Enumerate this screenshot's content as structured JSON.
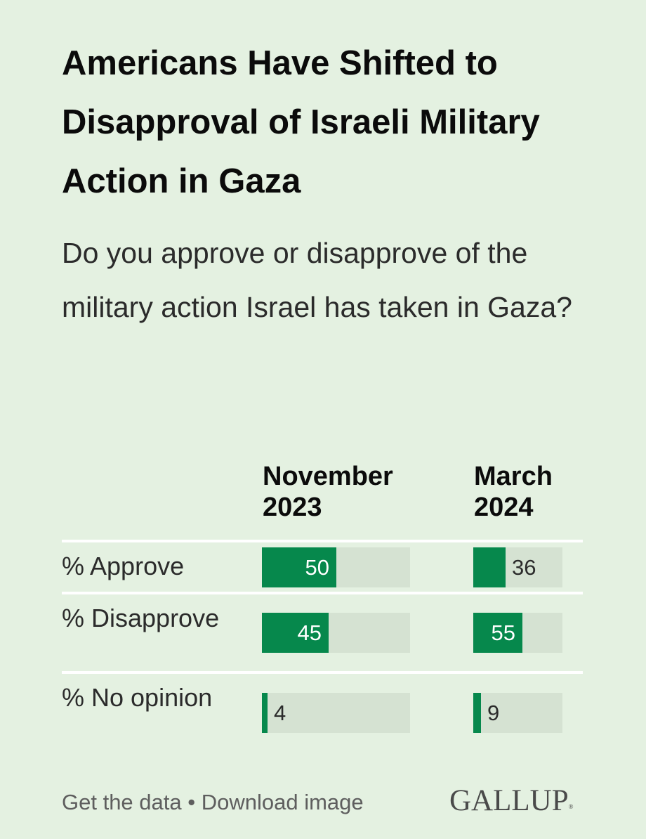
{
  "title": "Americans Have Shifted to Disapproval of Israeli Military Action in Gaza",
  "subtitle": "Do you approve or disapprove of the military action Israel has taken in Gaza?",
  "chart_data": {
    "type": "bar",
    "orientation": "horizontal",
    "max_value": 100,
    "columns": [
      {
        "line1": "November",
        "line2": "2023"
      },
      {
        "line1": "March",
        "line2": "2024"
      }
    ],
    "categories": [
      "% Approve",
      "% Disapprove",
      "% No opinion"
    ],
    "series": [
      {
        "name": "November 2023",
        "values": [
          50,
          45,
          4
        ]
      },
      {
        "name": "March 2024",
        "values": [
          36,
          55,
          9
        ]
      }
    ],
    "colors": {
      "bar": "#06884c",
      "track": "#d5e2d2"
    }
  },
  "footer": {
    "get_data": "Get the data",
    "separator": "•",
    "download": "Download image"
  },
  "brand": {
    "name": "GALLUP",
    "mark": "®"
  }
}
